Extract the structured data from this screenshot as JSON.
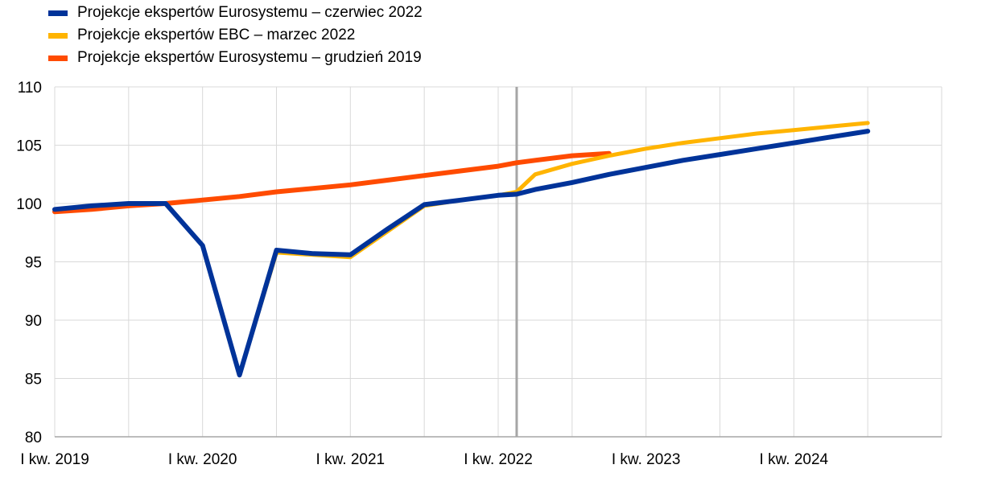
{
  "chart_data": {
    "type": "line",
    "title": "",
    "xlabel": "",
    "ylabel": "",
    "ylim": [
      80,
      110
    ],
    "yticks": [
      "80",
      "85",
      "90",
      "95",
      "100",
      "105",
      "110"
    ],
    "x_tick_labels": [
      "I kw. 2019",
      "I kw. 2020",
      "I kw. 2021",
      "I kw. 2022",
      "I kw. 2023",
      "I kw. 2024"
    ],
    "x_tick_quarter_index": [
      0,
      4,
      8,
      12,
      16,
      20
    ],
    "quarters_total": 24,
    "vertical_marker_quarter": 12.5,
    "grid": true,
    "legend_position": "top-left",
    "series": [
      {
        "name": "Projekcje ekspertów Eurosystemu – czerwiec 2022",
        "color": "#003399",
        "values": [
          99.5,
          99.8,
          100.0,
          100.0,
          96.4,
          85.3,
          96.0,
          95.7,
          95.6,
          97.8,
          99.9,
          100.3,
          100.7,
          101.2,
          101.8,
          102.5,
          103.1,
          103.7,
          104.2,
          104.7,
          105.2,
          105.7,
          106.2
        ]
      },
      {
        "name": "Projekcje ekspertów EBC – marzec 2022",
        "color": "#FFB400",
        "values": [
          99.5,
          99.8,
          100.0,
          100.0,
          96.4,
          85.3,
          95.8,
          95.6,
          95.4,
          97.6,
          99.8,
          100.3,
          100.7,
          102.5,
          103.4,
          104.1,
          104.7,
          105.2,
          105.6,
          106.0,
          106.3,
          106.6,
          106.9
        ]
      },
      {
        "name": "Projekcje ekspertów Eurosystemu – grudzień 2019",
        "color": "#FF4B00",
        "values": [
          99.3,
          99.5,
          99.8,
          100.0,
          100.3,
          100.6,
          101.0,
          101.3,
          101.6,
          102.0,
          102.4,
          102.8,
          103.2,
          103.7,
          104.1,
          104.3
        ]
      }
    ],
    "series_x_start": [
      0,
      0,
      0
    ],
    "series_draw_order": [
      2,
      1,
      0
    ],
    "special_points": {
      "0": {
        "12.5": 100.8
      },
      "1": {
        "12.5": 101.0
      },
      "2": {
        "12.5": 103.5
      }
    }
  }
}
